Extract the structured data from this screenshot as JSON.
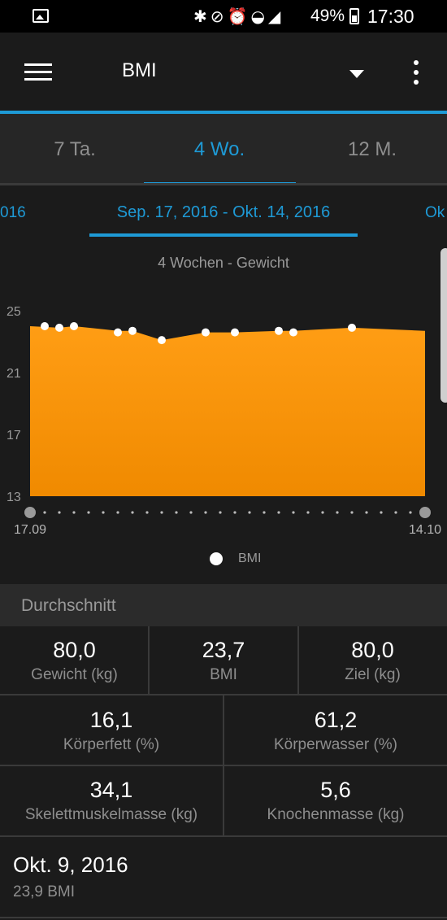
{
  "status_bar": {
    "battery": "49%",
    "time": "17:30",
    "icons": [
      "image-icon",
      "bluetooth-icon",
      "mute-icon",
      "alarm-icon",
      "wifi-icon",
      "signal-icon",
      "battery-icon"
    ]
  },
  "app_bar": {
    "title": "BMI"
  },
  "tabs": [
    "7 Ta.",
    "4 Wo.",
    "12 M."
  ],
  "active_tab": 1,
  "date_range": {
    "prev": "016",
    "current": "Sep. 17, 2016 - Okt. 14, 2016",
    "next": "Ok"
  },
  "chart_title": "4 Wochen - Gewicht",
  "chart_data": {
    "type": "area",
    "title": "4 Wochen - Gewicht",
    "x_labels": [
      "17.09",
      "14.10"
    ],
    "y_ticks": [
      13,
      17,
      21,
      25
    ],
    "ylim": [
      13,
      25
    ],
    "x_days": 27,
    "series": [
      {
        "name": "BMI",
        "area_points": [
          [
            0,
            24.0
          ],
          [
            2,
            23.9
          ],
          [
            3,
            24.0
          ],
          [
            6,
            23.7
          ],
          [
            7,
            23.7
          ],
          [
            9,
            23.1
          ],
          [
            12,
            23.6
          ],
          [
            14,
            23.6
          ],
          [
            17,
            23.7
          ],
          [
            18,
            23.7
          ],
          [
            22,
            23.9
          ],
          [
            27,
            23.7
          ]
        ],
        "markers": [
          [
            1,
            24.0
          ],
          [
            2,
            23.9
          ],
          [
            3,
            24.0
          ],
          [
            6,
            23.6
          ],
          [
            7,
            23.7
          ],
          [
            9,
            23.1
          ],
          [
            12,
            23.6
          ],
          [
            14,
            23.6
          ],
          [
            17,
            23.7
          ],
          [
            18,
            23.6
          ],
          [
            22,
            23.9
          ]
        ]
      }
    ],
    "area_color": "#f08a00",
    "marker_color": "#ffffff",
    "legend": "BMI"
  },
  "summary": {
    "header": "Durchschnitt",
    "row1": [
      {
        "value": "80,0",
        "label": "Gewicht (kg)"
      },
      {
        "value": "23,7",
        "label": "BMI"
      },
      {
        "value": "80,0",
        "label": "Ziel (kg)"
      }
    ],
    "row2": [
      {
        "value": "16,1",
        "label": "Körperfett (%)"
      },
      {
        "value": "61,2",
        "label": "Körperwasser (%)"
      }
    ],
    "row3": [
      {
        "value": "34,1",
        "label": "Skelettmuskelmasse (kg)"
      },
      {
        "value": "5,6",
        "label": "Knochenmasse (kg)"
      }
    ]
  },
  "entry": {
    "date": "Okt. 9, 2016",
    "value": "23,9 BMI"
  },
  "colors": {
    "accent": "#1e9ad6",
    "chart_fill": "#f08a00",
    "background": "#1b1b1b"
  }
}
